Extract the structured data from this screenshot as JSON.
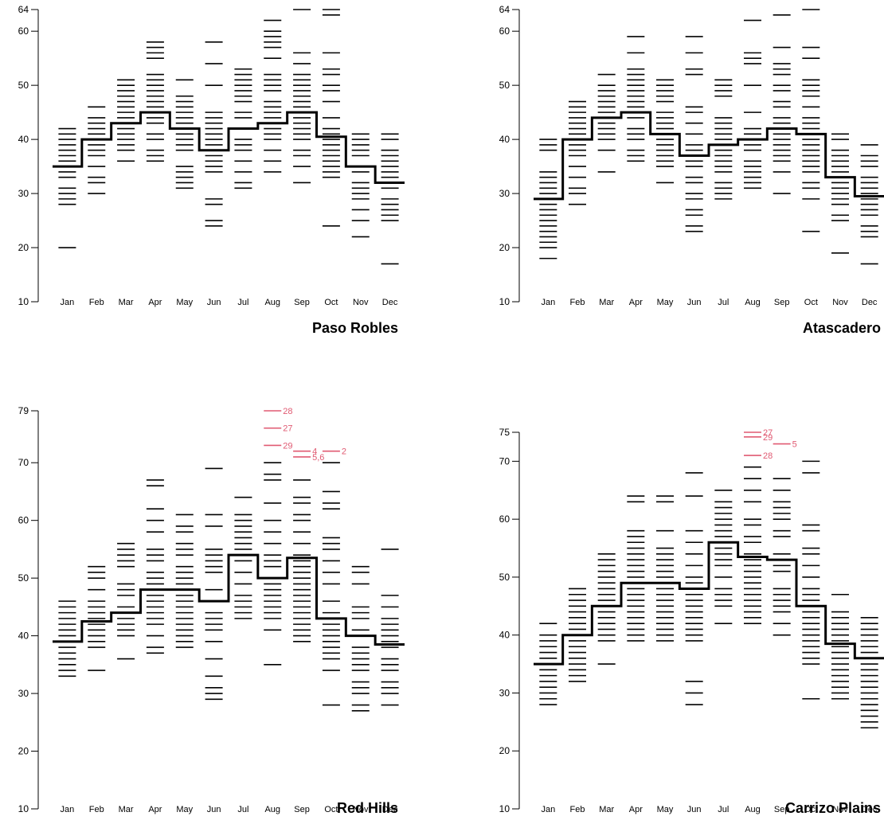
{
  "accent_color": "#e05a72",
  "chart_data": [
    {
      "type": "scatter",
      "title": "Paso Robles",
      "categories": [
        "Jan",
        "Feb",
        "Mar",
        "Apr",
        "May",
        "Jun",
        "Jul",
        "Aug",
        "Sep",
        "Oct",
        "Nov",
        "Dec"
      ],
      "ylim": [
        10,
        64
      ],
      "yticks": [
        10,
        20,
        30,
        40,
        50,
        60,
        64
      ],
      "step_values": [
        35,
        40,
        43,
        45,
        42,
        38,
        42,
        43,
        45,
        40.5,
        35,
        32
      ],
      "points": [
        [
          20,
          28,
          29,
          30,
          31,
          33,
          34,
          35,
          36,
          37,
          38,
          39,
          40,
          41,
          42
        ],
        [
          30,
          32,
          33,
          35,
          37,
          38,
          39,
          40,
          41,
          42,
          43,
          44,
          46
        ],
        [
          36,
          38,
          39,
          40,
          41,
          42,
          43,
          44,
          45,
          46,
          47,
          48,
          49,
          50,
          51
        ],
        [
          36,
          37,
          38,
          40,
          41,
          43,
          44,
          45,
          46,
          47,
          48,
          49,
          50,
          51,
          52,
          55,
          56,
          57,
          58
        ],
        [
          31,
          32,
          33,
          34,
          35,
          38,
          39,
          40,
          41,
          42,
          43,
          44,
          45,
          46,
          47,
          48,
          51
        ],
        [
          24,
          25,
          28,
          29,
          34,
          35,
          36,
          37,
          38,
          39,
          40,
          41,
          42,
          43,
          44,
          45,
          50,
          54,
          58
        ],
        [
          31,
          32,
          34,
          36,
          38,
          39,
          40,
          42,
          44,
          45,
          47,
          48,
          49,
          50,
          51,
          52,
          53
        ],
        [
          34,
          36,
          38,
          40,
          41,
          42,
          44,
          45,
          46,
          47,
          49,
          50,
          51,
          52,
          55,
          57,
          58,
          59,
          60,
          62
        ],
        [
          32,
          35,
          37,
          38,
          40,
          41,
          42,
          43,
          44,
          45,
          46,
          47,
          48,
          49,
          50,
          51,
          52,
          54,
          56,
          64
        ],
        [
          24,
          33,
          34,
          35,
          36,
          37,
          38,
          39,
          40,
          41,
          42,
          44,
          47,
          49,
          50,
          52,
          53,
          56,
          63,
          64
        ],
        [
          22,
          25,
          27,
          29,
          30,
          31,
          32,
          34,
          35,
          37,
          38,
          39,
          40,
          41
        ],
        [
          17,
          25,
          26,
          27,
          28,
          29,
          31,
          32,
          33,
          34,
          35,
          36,
          37,
          38,
          40,
          41
        ]
      ],
      "annotations": []
    },
    {
      "type": "scatter",
      "title": "Atascadero",
      "categories": [
        "Jan",
        "Feb",
        "Mar",
        "Apr",
        "May",
        "Jun",
        "Jul",
        "Aug",
        "Sep",
        "Oct",
        "Nov",
        "Dec"
      ],
      "ylim": [
        10,
        64
      ],
      "yticks": [
        10,
        20,
        30,
        40,
        50,
        60,
        64
      ],
      "step_values": [
        29,
        40,
        44,
        45,
        41,
        37,
        39,
        40,
        42,
        41,
        33,
        29.5
      ],
      "points": [
        [
          18,
          20,
          21,
          22,
          23,
          24,
          25,
          26,
          27,
          28,
          29,
          30,
          31,
          32,
          33,
          34,
          38,
          39,
          40
        ],
        [
          28,
          30,
          31,
          33,
          35,
          37,
          38,
          39,
          40,
          41,
          42,
          43,
          44,
          45,
          46,
          47
        ],
        [
          34,
          38,
          40,
          41,
          42,
          43,
          44,
          45,
          46,
          47,
          48,
          49,
          50,
          52
        ],
        [
          36,
          37,
          38,
          40,
          41,
          42,
          44,
          45,
          46,
          47,
          48,
          49,
          50,
          51,
          52,
          53,
          56,
          59
        ],
        [
          32,
          35,
          36,
          37,
          38,
          39,
          40,
          41,
          42,
          43,
          44,
          45,
          47,
          48,
          49,
          50,
          51
        ],
        [
          23,
          24,
          26,
          27,
          29,
          30,
          32,
          33,
          35,
          36,
          37,
          38,
          39,
          41,
          43,
          45,
          46,
          52,
          53,
          56,
          59
        ],
        [
          29,
          30,
          31,
          32,
          34,
          35,
          36,
          37,
          38,
          39,
          40,
          41,
          42,
          43,
          44,
          48,
          49,
          50,
          51
        ],
        [
          31,
          32,
          33,
          34,
          35,
          36,
          38,
          39,
          40,
          41,
          42,
          45,
          50,
          54,
          55,
          56,
          62
        ],
        [
          30,
          34,
          36,
          37,
          38,
          39,
          40,
          41,
          42,
          43,
          44,
          46,
          47,
          49,
          50,
          52,
          53,
          54,
          57,
          63
        ],
        [
          23,
          29,
          31,
          32,
          34,
          35,
          36,
          37,
          38,
          39,
          40,
          41,
          42,
          43,
          44,
          46,
          48,
          49,
          50,
          51,
          55,
          57,
          64
        ],
        [
          19,
          25,
          26,
          28,
          29,
          30,
          31,
          32,
          33,
          34,
          35,
          36,
          37,
          38,
          40,
          41
        ],
        [
          17,
          22,
          23,
          24,
          26,
          27,
          28,
          29,
          30,
          31,
          32,
          33,
          35,
          36,
          37,
          39
        ]
      ],
      "annotations": []
    },
    {
      "type": "scatter",
      "title": "Red Hills",
      "categories": [
        "Jan",
        "Feb",
        "Mar",
        "Apr",
        "May",
        "Jun",
        "Jul",
        "Aug",
        "Sep",
        "Oct",
        "Nov",
        "Dec"
      ],
      "ylim": [
        10,
        79
      ],
      "yticks": [
        10,
        20,
        30,
        40,
        50,
        60,
        70,
        79
      ],
      "step_values": [
        39,
        42.5,
        44,
        48,
        48,
        46,
        54,
        50,
        53.5,
        43,
        40,
        38.5
      ],
      "points": [
        [
          33,
          34,
          35,
          36,
          37,
          38,
          39,
          40,
          41,
          42,
          43,
          44,
          45,
          46
        ],
        [
          34,
          38,
          39,
          40,
          41,
          42,
          43,
          44,
          45,
          46,
          48,
          50,
          51,
          52
        ],
        [
          36,
          40,
          41,
          42,
          43,
          44,
          45,
          47,
          48,
          49,
          52,
          53,
          54,
          55,
          56
        ],
        [
          37,
          38,
          40,
          42,
          43,
          44,
          45,
          46,
          47,
          48,
          49,
          50,
          51,
          53,
          54,
          55,
          58,
          60,
          62,
          66,
          67
        ],
        [
          38,
          39,
          40,
          41,
          42,
          43,
          44,
          45,
          46,
          47,
          48,
          49,
          50,
          51,
          52,
          54,
          55,
          56,
          58,
          59,
          61
        ],
        [
          29,
          30,
          31,
          33,
          36,
          39,
          41,
          42,
          43,
          44,
          46,
          48,
          51,
          52,
          53,
          54,
          55,
          59,
          61,
          69
        ],
        [
          43,
          44,
          45,
          46,
          47,
          49,
          51,
          53,
          55,
          56,
          57,
          58,
          59,
          60,
          61,
          64
        ],
        [
          35,
          41,
          43,
          44,
          45,
          46,
          47,
          48,
          49,
          52,
          53,
          54,
          56,
          58,
          60,
          63,
          67,
          68,
          70
        ],
        [
          39,
          40,
          41,
          42,
          43,
          44,
          45,
          46,
          47,
          48,
          49,
          50,
          51,
          52,
          53,
          54,
          56,
          58,
          60,
          61,
          63,
          64,
          67
        ],
        [
          28,
          34,
          36,
          37,
          38,
          39,
          40,
          41,
          42,
          44,
          46,
          49,
          51,
          53,
          55,
          56,
          57,
          62,
          63,
          65,
          70
        ],
        [
          27,
          28,
          30,
          31,
          32,
          34,
          35,
          36,
          37,
          38,
          40,
          41,
          43,
          44,
          45,
          49,
          51,
          52
        ],
        [
          28,
          30,
          31,
          32,
          34,
          35,
          36,
          38,
          39,
          40,
          41,
          42,
          43,
          45,
          47,
          55
        ]
      ],
      "annotations": [
        {
          "month": "Aug",
          "value": 79,
          "label": "28"
        },
        {
          "month": "Aug",
          "value": 76,
          "label": "27"
        },
        {
          "month": "Aug",
          "value": 73,
          "label": "29"
        },
        {
          "month": "Sep",
          "value": 72,
          "label": "4"
        },
        {
          "month": "Sep",
          "value": 71,
          "label": "5,6"
        },
        {
          "month": "Oct",
          "value": 72,
          "label": "2"
        }
      ]
    },
    {
      "type": "scatter",
      "title": "Carrizo Plains",
      "categories": [
        "Jan",
        "Feb",
        "Mar",
        "Apr",
        "May",
        "Jun",
        "Jul",
        "Aug",
        "Sep",
        "Oct",
        "Nov",
        "Dec"
      ],
      "ylim": [
        10,
        75
      ],
      "yticks": [
        10,
        20,
        30,
        40,
        50,
        60,
        70,
        75
      ],
      "step_values": [
        35,
        40,
        45,
        49,
        49,
        48,
        56,
        53.5,
        53,
        45,
        38.5,
        36
      ],
      "points": [
        [
          28,
          29,
          30,
          31,
          32,
          33,
          34,
          35,
          36,
          37,
          38,
          39,
          40,
          42
        ],
        [
          32,
          33,
          34,
          35,
          36,
          37,
          38,
          39,
          40,
          41,
          42,
          43,
          44,
          45,
          46,
          47,
          48
        ],
        [
          35,
          39,
          40,
          41,
          42,
          43,
          44,
          45,
          46,
          47,
          48,
          49,
          50,
          51,
          52,
          53,
          54
        ],
        [
          39,
          40,
          41,
          42,
          43,
          44,
          45,
          46,
          47,
          48,
          49,
          50,
          51,
          52,
          53,
          54,
          55,
          56,
          57,
          58,
          63,
          64
        ],
        [
          39,
          40,
          41,
          42,
          43,
          44,
          45,
          46,
          47,
          48,
          49,
          50,
          51,
          52,
          53,
          54,
          55,
          58,
          63,
          64
        ],
        [
          28,
          30,
          32,
          39,
          40,
          41,
          42,
          43,
          44,
          45,
          46,
          47,
          48,
          49,
          50,
          52,
          54,
          56,
          58,
          64,
          68
        ],
        [
          42,
          45,
          46,
          47,
          48,
          50,
          52,
          53,
          54,
          55,
          56,
          57,
          58,
          59,
          60,
          61,
          62,
          63,
          65
        ],
        [
          42,
          43,
          44,
          45,
          46,
          47,
          48,
          49,
          50,
          51,
          52,
          53,
          54,
          56,
          57,
          59,
          60,
          63,
          65,
          67,
          69
        ],
        [
          40,
          42,
          44,
          45,
          46,
          47,
          48,
          51,
          52,
          53,
          54,
          57,
          58,
          60,
          61,
          62,
          63,
          65,
          67
        ],
        [
          29,
          35,
          36,
          37,
          38,
          39,
          40,
          41,
          42,
          43,
          44,
          45,
          46,
          47,
          48,
          50,
          52,
          54,
          55,
          58,
          59,
          68,
          70
        ],
        [
          29,
          30,
          31,
          32,
          33,
          34,
          35,
          36,
          37,
          38,
          39,
          40,
          41,
          42,
          43,
          44,
          47
        ],
        [
          24,
          25,
          26,
          27,
          28,
          29,
          30,
          31,
          32,
          33,
          34,
          35,
          36,
          37,
          38,
          39,
          40,
          41,
          42,
          43
        ]
      ],
      "annotations": [
        {
          "month": "Aug",
          "value": 75,
          "label": "27"
        },
        {
          "month": "Aug",
          "value": 74.2,
          "label": "29"
        },
        {
          "month": "Sep",
          "value": 73,
          "label": "5"
        },
        {
          "month": "Aug",
          "value": 71,
          "label": "28"
        }
      ]
    }
  ]
}
